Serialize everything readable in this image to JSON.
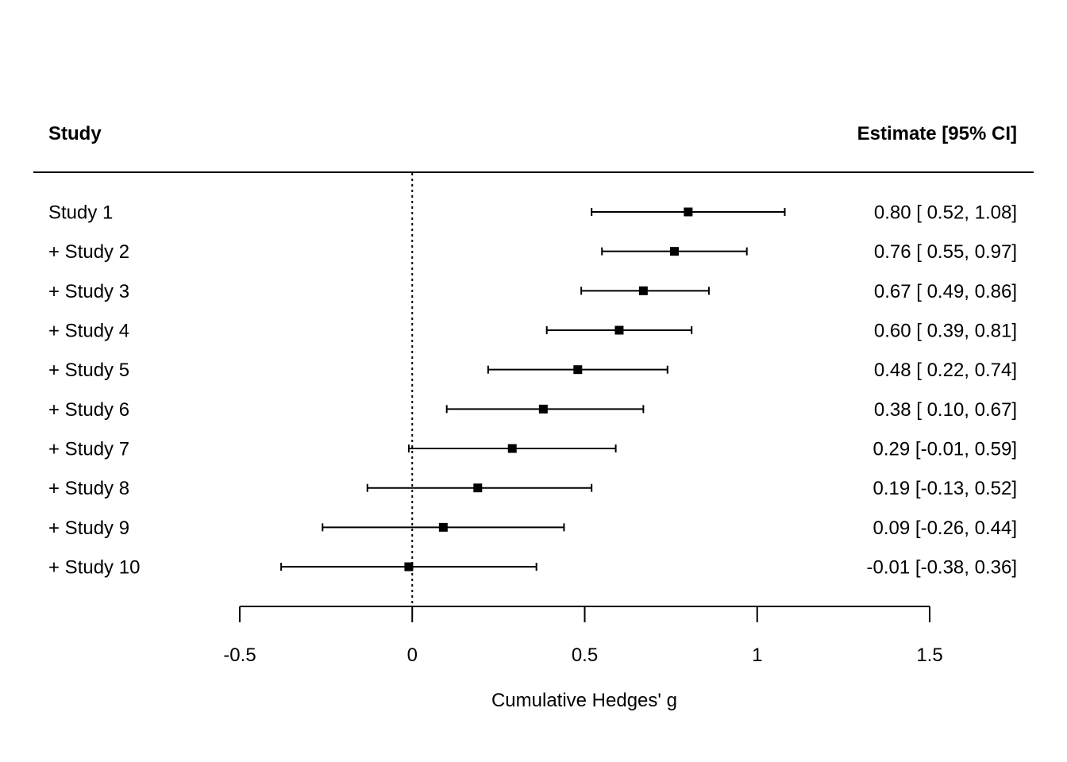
{
  "chart_data": {
    "type": "forest",
    "columns": {
      "left_header": "Study",
      "right_header": "Estimate [95% CI]"
    },
    "xlabel": "Cumulative Hedges' g",
    "xlim": [
      -0.5,
      1.5
    ],
    "xticks": [
      -0.5,
      0,
      0.5,
      1,
      1.5
    ],
    "xtick_labels": [
      "-0.5",
      "0",
      "0.5",
      "1",
      "1.5"
    ],
    "reference_line": 0,
    "rows": [
      {
        "study": "Study 1",
        "estimate": 0.8,
        "lower": 0.52,
        "upper": 1.08,
        "text": "0.80 [ 0.52, 1.08]"
      },
      {
        "study": "+ Study 2",
        "estimate": 0.76,
        "lower": 0.55,
        "upper": 0.97,
        "text": "0.76 [ 0.55, 0.97]"
      },
      {
        "study": "+ Study 3",
        "estimate": 0.67,
        "lower": 0.49,
        "upper": 0.86,
        "text": "0.67 [ 0.49, 0.86]"
      },
      {
        "study": "+ Study 4",
        "estimate": 0.6,
        "lower": 0.39,
        "upper": 0.81,
        "text": "0.60 [ 0.39, 0.81]"
      },
      {
        "study": "+ Study 5",
        "estimate": 0.48,
        "lower": 0.22,
        "upper": 0.74,
        "text": "0.48 [ 0.22, 0.74]"
      },
      {
        "study": "+ Study 6",
        "estimate": 0.38,
        "lower": 0.1,
        "upper": 0.67,
        "text": "0.38 [ 0.10, 0.67]"
      },
      {
        "study": "+ Study 7",
        "estimate": 0.29,
        "lower": -0.01,
        "upper": 0.59,
        "text": "0.29 [-0.01, 0.59]"
      },
      {
        "study": "+ Study 8",
        "estimate": 0.19,
        "lower": -0.13,
        "upper": 0.52,
        "text": "0.19 [-0.13, 0.52]"
      },
      {
        "study": "+ Study 9",
        "estimate": 0.09,
        "lower": -0.26,
        "upper": 0.44,
        "text": "0.09 [-0.26, 0.44]"
      },
      {
        "study": "+ Study 10",
        "estimate": -0.01,
        "lower": -0.38,
        "upper": 0.36,
        "text": "-0.01 [-0.38, 0.36]"
      }
    ]
  }
}
